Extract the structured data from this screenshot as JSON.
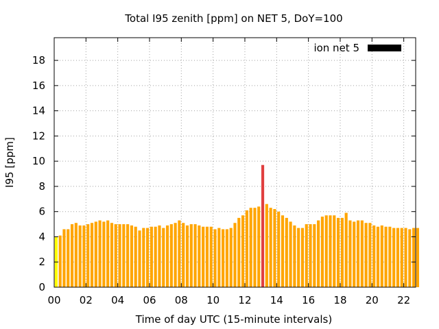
{
  "chart_data": {
    "type": "bar",
    "title": "Total I95 zenith [ppm] on NET 5, DoY=100",
    "xlabel": "Time of day UTC (15-minute intervals)",
    "ylabel": "I95 [ppm]",
    "legend": {
      "label": "ion net 5",
      "color": "#000000",
      "placement": "top-right"
    },
    "xlim": [
      0,
      22.75
    ],
    "ylim": [
      0,
      19.8
    ],
    "x_ticks": [
      0,
      2,
      4,
      6,
      8,
      10,
      12,
      14,
      16,
      18,
      20,
      22
    ],
    "x_tick_labels": [
      "00",
      "02",
      "04",
      "06",
      "08",
      "10",
      "12",
      "14",
      "16",
      "18",
      "20",
      "22"
    ],
    "y_ticks": [
      0,
      2,
      4,
      6,
      8,
      10,
      12,
      14,
      16,
      18
    ],
    "y_tick_labels": [
      "0",
      "2",
      "4",
      "6",
      "8",
      "10",
      "12",
      "14",
      "16",
      "18"
    ],
    "grid": true,
    "bar_step_hours": 0.25,
    "bar_width_hours": 0.18,
    "colors": {
      "low": "#ffff00",
      "medium": "#ffa500",
      "high": "#e04040"
    },
    "values": [
      4.0,
      4.1,
      4.6,
      4.6,
      5.0,
      5.1,
      4.9,
      4.9,
      5.0,
      5.1,
      5.2,
      5.3,
      5.2,
      5.3,
      5.1,
      5.0,
      5.0,
      5.0,
      5.0,
      4.9,
      4.8,
      4.5,
      4.7,
      4.7,
      4.8,
      4.8,
      4.9,
      4.7,
      4.9,
      5.0,
      5.1,
      5.3,
      5.1,
      4.9,
      5.0,
      5.0,
      4.9,
      4.8,
      4.8,
      4.8,
      4.6,
      4.7,
      4.6,
      4.6,
      4.7,
      5.1,
      5.5,
      5.7,
      6.1,
      6.3,
      6.3,
      6.4,
      9.7,
      6.6,
      6.3,
      6.2,
      6.0,
      5.7,
      5.5,
      5.2,
      4.9,
      4.7,
      4.7,
      5.0,
      5.0,
      5.0,
      5.3,
      5.6,
      5.7,
      5.7,
      5.7,
      5.5,
      5.5,
      5.9,
      5.3,
      5.2,
      5.3,
      5.3,
      5.1,
      5.1,
      4.9,
      4.8,
      4.9,
      4.8,
      4.8,
      4.7,
      4.7,
      4.7,
      4.7,
      4.6,
      4.7,
      4.7
    ],
    "bar_colors": [
      "low",
      "medium",
      "medium",
      "medium",
      "medium",
      "medium",
      "medium",
      "medium",
      "medium",
      "medium",
      "medium",
      "medium",
      "medium",
      "medium",
      "medium",
      "medium",
      "medium",
      "medium",
      "medium",
      "medium",
      "medium",
      "medium",
      "medium",
      "medium",
      "medium",
      "medium",
      "medium",
      "medium",
      "medium",
      "medium",
      "medium",
      "medium",
      "medium",
      "medium",
      "medium",
      "medium",
      "medium",
      "medium",
      "medium",
      "medium",
      "medium",
      "medium",
      "medium",
      "medium",
      "medium",
      "medium",
      "medium",
      "medium",
      "medium",
      "medium",
      "medium",
      "medium",
      "high",
      "medium",
      "medium",
      "medium",
      "medium",
      "medium",
      "medium",
      "medium",
      "medium",
      "medium",
      "medium",
      "medium",
      "medium",
      "medium",
      "medium",
      "medium",
      "medium",
      "medium",
      "medium",
      "medium",
      "medium",
      "medium",
      "medium",
      "medium",
      "medium",
      "medium",
      "medium",
      "medium",
      "medium",
      "medium",
      "medium",
      "medium",
      "medium",
      "medium",
      "medium",
      "medium",
      "medium",
      "medium",
      "medium",
      "medium"
    ]
  }
}
